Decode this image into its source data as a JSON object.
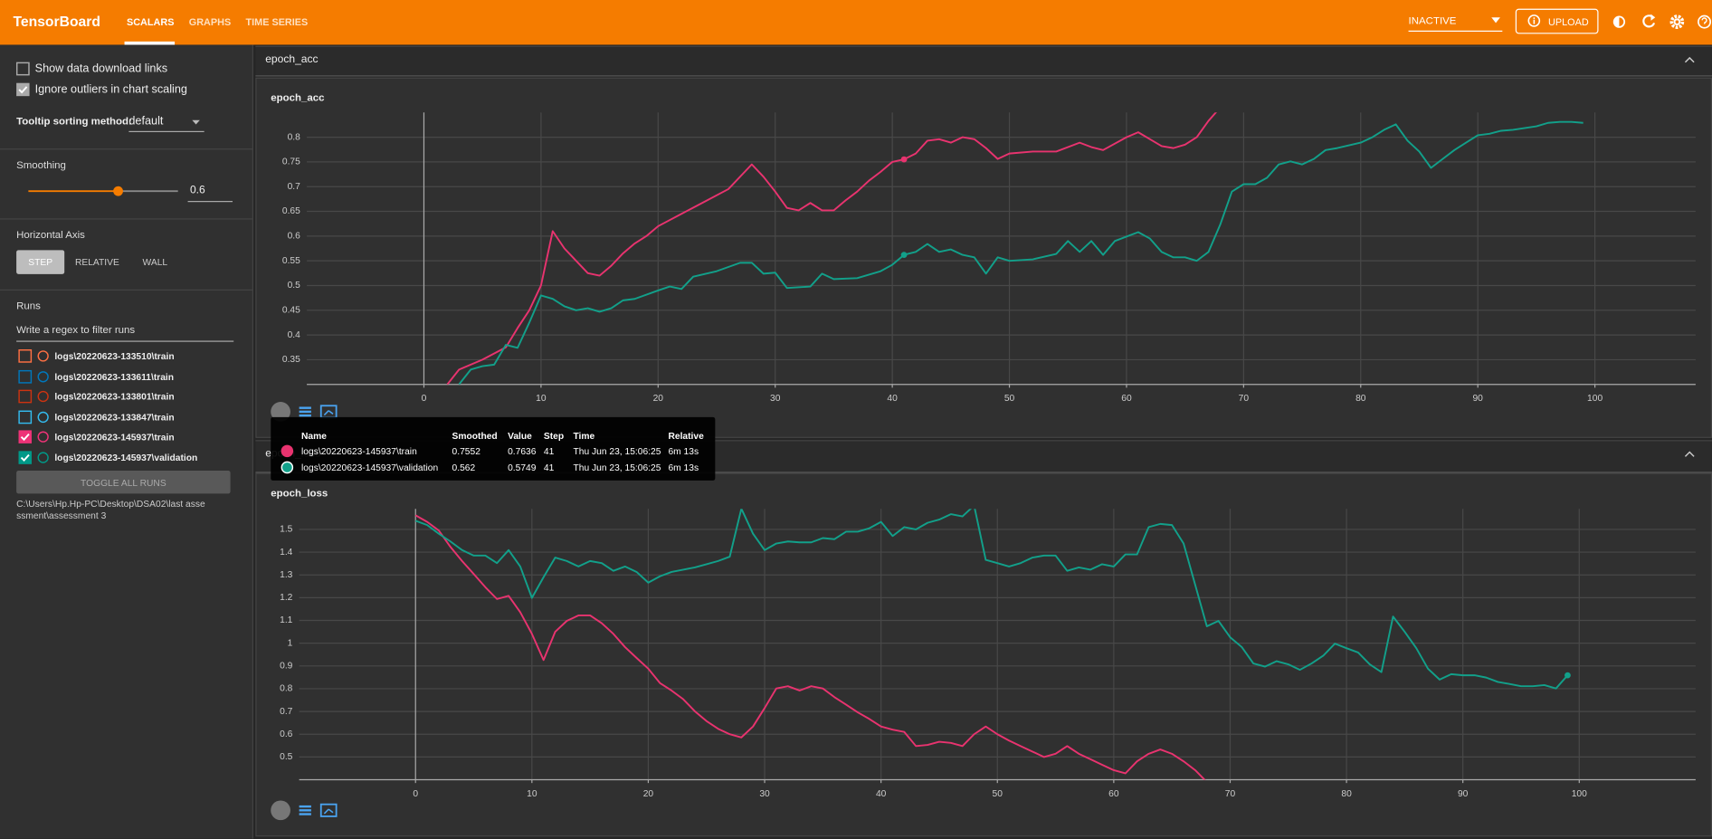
{
  "header": {
    "title": "TensorBoard",
    "tabs": [
      "SCALARS",
      "GRAPHS",
      "TIME SERIES"
    ],
    "status": "INACTIVE",
    "upload": "UPLOAD"
  },
  "sidebar": {
    "options": [
      {
        "label": "Show data download links",
        "checked": false
      },
      {
        "label": "Ignore outliers in chart scaling",
        "checked": true
      }
    ],
    "tooltip_sorting_label": "Tooltip sorting method:",
    "tooltip_sorting_value": "default",
    "smoothing_label": "Smoothing",
    "smoothing_value": 0.6,
    "horizontal_axis_label": "Horizontal Axis",
    "axis_buttons": [
      "STEP",
      "RELATIVE",
      "WALL"
    ],
    "runs_label": "Runs",
    "filter_placeholder": "Write a regex to filter runs",
    "runs": [
      {
        "name": "logs\\20220623-133510\\train",
        "color": "#ff7043",
        "checked": false
      },
      {
        "name": "logs\\20220623-133611\\train",
        "color": "#0077bb",
        "checked": false
      },
      {
        "name": "logs\\20220623-133801\\train",
        "color": "#cc3311",
        "checked": false
      },
      {
        "name": "logs\\20220623-133847\\train",
        "color": "#33bbee",
        "checked": false
      },
      {
        "name": "logs\\20220623-145937\\train",
        "color": "#ee3377",
        "checked": true
      },
      {
        "name": "logs\\20220623-145937\\validation",
        "color": "#009988",
        "checked": true
      }
    ],
    "toggle_all": "TOGGLE ALL RUNS",
    "logdir": "C:\\Users\\Hp.Hp-PC\\Desktop\\DSA02\\last assessment\\assessment 3"
  },
  "sections": [
    {
      "title": "epoch_acc"
    },
    {
      "title": "epoch_loss"
    }
  ],
  "chart_data": [
    {
      "type": "line",
      "title": "epoch_acc",
      "xlim": [
        -10,
        108.6
      ],
      "ylim": [
        0.3,
        0.85
      ],
      "xticks": [
        0,
        10,
        20,
        30,
        40,
        50,
        60,
        70,
        80,
        90,
        100
      ],
      "yticks": [
        0.35,
        0.4,
        0.45,
        0.5,
        0.55,
        0.6,
        0.65,
        0.7,
        0.75,
        0.8
      ],
      "grid": true,
      "hover_step": 41,
      "series": [
        {
          "name": "logs\\20220623-145937\\train",
          "color": "#e8336f",
          "x": [
            2,
            3,
            5,
            7,
            8,
            9,
            10,
            11,
            12,
            13,
            14,
            15,
            16,
            17,
            18,
            19,
            20,
            22,
            24,
            26,
            28,
            29,
            30,
            31,
            32,
            33,
            34,
            35,
            36,
            37,
            38,
            39,
            40,
            41,
            42,
            43,
            44,
            45,
            46,
            47,
            48,
            49,
            50,
            52,
            54,
            56,
            57,
            58,
            60,
            61,
            62,
            63,
            64,
            65,
            66,
            67,
            68
          ],
          "values": [
            0.3,
            0.33,
            0.35,
            0.375,
            0.414,
            0.45,
            0.5,
            0.61,
            0.575,
            0.55,
            0.525,
            0.52,
            0.54,
            0.565,
            0.585,
            0.6,
            0.62,
            0.645,
            0.67,
            0.695,
            0.745,
            0.72,
            0.69,
            0.657,
            0.652,
            0.667,
            0.652,
            0.652,
            0.672,
            0.69,
            0.712,
            0.73,
            0.75,
            0.7552,
            0.767,
            0.793,
            0.796,
            0.789,
            0.8,
            0.796,
            0.778,
            0.756,
            0.767,
            0.771,
            0.771,
            0.789,
            0.78,
            0.774,
            0.8,
            0.81,
            0.796,
            0.782,
            0.778,
            0.785,
            0.8,
            0.833,
            0.86
          ]
        },
        {
          "name": "logs\\20220623-145937\\validation",
          "color": "#12a08a",
          "x": [
            3,
            4,
            5,
            6,
            7,
            8,
            9,
            10,
            11,
            12,
            13,
            14,
            15,
            16,
            17,
            18,
            20,
            21,
            22,
            23,
            25,
            27,
            28,
            29,
            30,
            31,
            33,
            34,
            35,
            37,
            39,
            40,
            41,
            42,
            43,
            44,
            45,
            46,
            47,
            48,
            49,
            50,
            52,
            54,
            55,
            56,
            57,
            58,
            59,
            61,
            62,
            63,
            64,
            65,
            66,
            67,
            68,
            69,
            70,
            71,
            72,
            73,
            74,
            75,
            76,
            77,
            78,
            80,
            81,
            82,
            83,
            84,
            85,
            86,
            87,
            88,
            89,
            90,
            91,
            92,
            93,
            95,
            96,
            97,
            98,
            99
          ],
          "values": [
            0.3,
            0.33,
            0.337,
            0.34,
            0.38,
            0.374,
            0.425,
            0.48,
            0.473,
            0.458,
            0.45,
            0.454,
            0.447,
            0.454,
            0.47,
            0.473,
            0.49,
            0.498,
            0.493,
            0.518,
            0.529,
            0.546,
            0.546,
            0.524,
            0.526,
            0.495,
            0.498,
            0.524,
            0.513,
            0.515,
            0.529,
            0.542,
            0.562,
            0.568,
            0.584,
            0.568,
            0.573,
            0.562,
            0.557,
            0.524,
            0.557,
            0.55,
            0.553,
            0.564,
            0.59,
            0.568,
            0.59,
            0.562,
            0.59,
            0.608,
            0.595,
            0.568,
            0.557,
            0.557,
            0.55,
            0.568,
            0.623,
            0.69,
            0.705,
            0.705,
            0.718,
            0.745,
            0.751,
            0.745,
            0.756,
            0.774,
            0.778,
            0.789,
            0.8,
            0.815,
            0.826,
            0.793,
            0.771,
            0.738,
            0.756,
            0.774,
            0.789,
            0.804,
            0.807,
            0.813,
            0.815,
            0.822,
            0.829,
            0.831,
            0.831,
            0.829
          ]
        }
      ]
    },
    {
      "type": "line",
      "title": "epoch_loss",
      "xlim": [
        -10,
        110
      ],
      "ylim": [
        0.4,
        1.59
      ],
      "xticks": [
        0,
        10,
        20,
        30,
        40,
        50,
        60,
        70,
        80,
        90,
        100
      ],
      "yticks": [
        0.5,
        0.6,
        0.7,
        0.8,
        0.9,
        1,
        1.1,
        1.2,
        1.3,
        1.4,
        1.5
      ],
      "grid": true,
      "hover_step": 99,
      "series": [
        {
          "name": "logs\\20220623-145937\\train",
          "color": "#e8336f",
          "x": [
            0,
            1,
            2,
            3,
            4,
            5,
            6,
            7,
            8,
            9,
            10,
            11,
            12,
            13,
            14,
            15,
            16,
            17,
            18,
            19,
            20,
            21,
            22,
            23,
            24,
            25,
            26,
            27,
            28,
            29,
            30,
            31,
            32,
            33,
            34,
            35,
            36,
            37,
            38,
            39,
            40,
            41,
            42,
            43,
            44,
            45,
            46,
            47,
            48,
            49,
            50,
            51,
            52,
            53,
            54,
            55,
            56,
            57,
            58,
            59,
            60,
            61,
            62,
            63,
            64,
            65,
            66,
            67,
            68
          ],
          "values": [
            1.562,
            1.533,
            1.495,
            1.423,
            1.361,
            1.304,
            1.246,
            1.194,
            1.208,
            1.136,
            1.041,
            0.926,
            1.05,
            1.098,
            1.122,
            1.122,
            1.088,
            1.041,
            0.983,
            0.935,
            0.888,
            0.825,
            0.792,
            0.754,
            0.701,
            0.658,
            0.624,
            0.6,
            0.586,
            0.634,
            0.715,
            0.801,
            0.811,
            0.792,
            0.811,
            0.801,
            0.763,
            0.73,
            0.696,
            0.667,
            0.634,
            0.62,
            0.61,
            0.548,
            0.553,
            0.567,
            0.562,
            0.548,
            0.6,
            0.634,
            0.6,
            0.572,
            0.548,
            0.524,
            0.5,
            0.514,
            0.548,
            0.514,
            0.49,
            0.466,
            0.442,
            0.428,
            0.481,
            0.514,
            0.533,
            0.514,
            0.481,
            0.442,
            0.39
          ]
        },
        {
          "name": "logs\\20220623-145937\\validation",
          "color": "#12a08a",
          "x": [
            0,
            1,
            2,
            3,
            4,
            5,
            6,
            7,
            8,
            9,
            10,
            11,
            12,
            13,
            14,
            15,
            16,
            17,
            18,
            19,
            20,
            21,
            22,
            23,
            24,
            25,
            26,
            27,
            28,
            29,
            30,
            31,
            32,
            33,
            34,
            35,
            36,
            37,
            38,
            39,
            40,
            41,
            42,
            43,
            44,
            45,
            46,
            47,
            48,
            49,
            50,
            51,
            52,
            53,
            54,
            55,
            56,
            57,
            58,
            59,
            60,
            61,
            62,
            63,
            64,
            65,
            66,
            67,
            68,
            69,
            70,
            71,
            72,
            73,
            74,
            75,
            76,
            77,
            78,
            79,
            80,
            81,
            82,
            83,
            84,
            85,
            86,
            87,
            88,
            89,
            90,
            91,
            92,
            93,
            94,
            95,
            96,
            97,
            98,
            99
          ],
          "values": [
            1.538,
            1.519,
            1.481,
            1.447,
            1.409,
            1.385,
            1.385,
            1.352,
            1.409,
            1.337,
            1.199,
            1.29,
            1.376,
            1.361,
            1.337,
            1.361,
            1.352,
            1.318,
            1.337,
            1.313,
            1.266,
            1.294,
            1.313,
            1.323,
            1.333,
            1.347,
            1.361,
            1.38,
            1.591,
            1.481,
            1.409,
            1.438,
            1.447,
            1.443,
            1.443,
            1.462,
            1.457,
            1.49,
            1.49,
            1.505,
            1.533,
            1.471,
            1.51,
            1.5,
            1.529,
            1.543,
            1.567,
            1.557,
            1.605,
            1.366,
            1.352,
            1.337,
            1.352,
            1.376,
            1.385,
            1.385,
            1.318,
            1.333,
            1.323,
            1.347,
            1.337,
            1.39,
            1.39,
            1.51,
            1.524,
            1.519,
            1.438,
            1.256,
            1.074,
            1.098,
            1.026,
            0.983,
            0.911,
            0.897,
            0.921,
            0.907,
            0.883,
            0.911,
            0.945,
            0.998,
            0.978,
            0.959,
            0.907,
            0.873,
            1.117,
            1.05,
            0.978,
            0.888,
            0.84,
            0.864,
            0.859,
            0.859,
            0.849,
            0.83,
            0.821,
            0.811,
            0.811,
            0.816,
            0.801,
            0.859
          ]
        }
      ]
    }
  ],
  "tooltip": {
    "columns": [
      "Name",
      "Smoothed",
      "Value",
      "Step",
      "Time",
      "Relative"
    ],
    "rows": [
      [
        "logs\\20220623-145937\\train",
        0.7552,
        0.7636,
        41,
        "Thu Jun 23, 15:06:25",
        "6m 13s"
      ],
      [
        "logs\\20220623-145937\\validation",
        0.562,
        0.5749,
        41,
        "Thu Jun 23, 15:06:25",
        "6m 13s"
      ]
    ]
  }
}
